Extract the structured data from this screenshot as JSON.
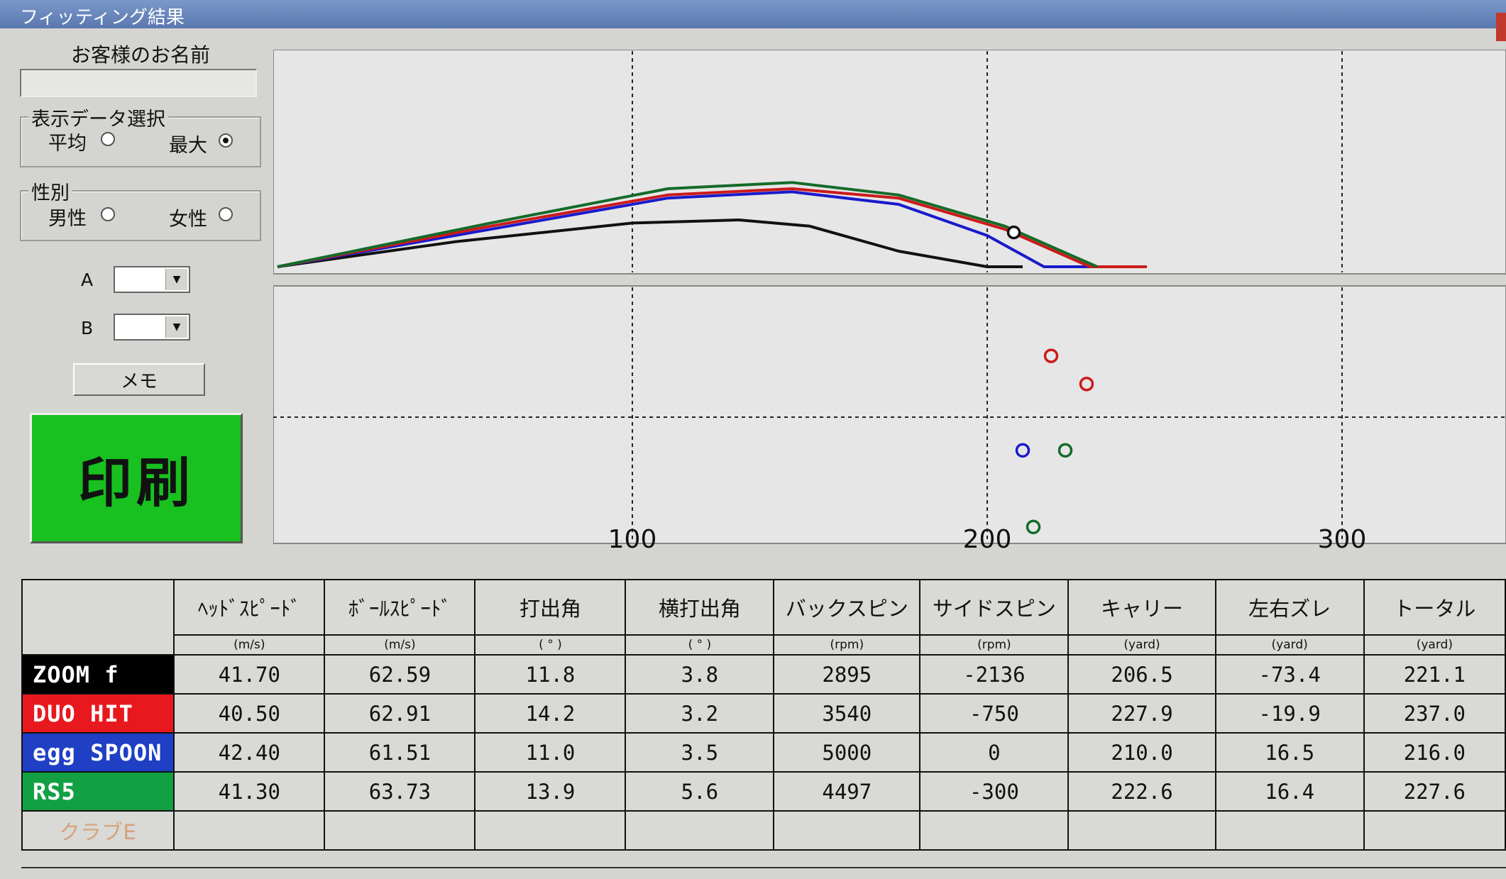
{
  "window": {
    "title": "フィッティング結果"
  },
  "sidebar": {
    "customer_label": "お客様のお名前",
    "customer_name": "",
    "display_group": {
      "legend": "表示データ選択",
      "options": [
        {
          "label": "平均",
          "selected": false
        },
        {
          "label": "最大",
          "selected": true
        }
      ]
    },
    "gender_group": {
      "legend": "性別",
      "options": [
        {
          "label": "男性",
          "selected": false
        },
        {
          "label": "女性",
          "selected": false
        }
      ]
    },
    "combo_a": {
      "label": "A",
      "value": ""
    },
    "combo_b": {
      "label": "B",
      "value": ""
    },
    "memo_label": "メモ",
    "print_label": "印刷"
  },
  "chart_data": {
    "type": "line",
    "x_ticks": [
      "100",
      "200",
      "300"
    ],
    "xlim": [
      0,
      340
    ],
    "trajectory_series": [
      {
        "color": "#111111",
        "points": [
          [
            0,
            0
          ],
          [
            50,
            8
          ],
          [
            100,
            14
          ],
          [
            130,
            15
          ],
          [
            150,
            13
          ],
          [
            175,
            5
          ],
          [
            200,
            0
          ],
          [
            210,
            0
          ]
        ]
      },
      {
        "color": "#1a1acc",
        "points": [
          [
            0,
            0
          ],
          [
            60,
            12
          ],
          [
            110,
            22
          ],
          [
            145,
            24
          ],
          [
            175,
            20
          ],
          [
            200,
            10
          ],
          [
            216,
            0
          ],
          [
            230,
            0
          ]
        ]
      },
      {
        "color": "#cc1a1a",
        "points": [
          [
            0,
            0
          ],
          [
            60,
            13
          ],
          [
            110,
            23
          ],
          [
            145,
            25
          ],
          [
            175,
            22
          ],
          [
            205,
            12
          ],
          [
            229,
            0
          ],
          [
            245,
            0
          ]
        ]
      },
      {
        "color": "#146b2a",
        "points": [
          [
            0,
            0
          ],
          [
            60,
            14
          ],
          [
            110,
            25
          ],
          [
            145,
            27
          ],
          [
            175,
            23
          ],
          [
            205,
            13
          ],
          [
            231,
            0
          ]
        ]
      }
    ],
    "trajectory_marker": {
      "x": 207.5,
      "y": 11,
      "color": "#111111"
    },
    "dispersion_points": [
      {
        "x": 218,
        "y": 24,
        "color": "#cc1a1a"
      },
      {
        "x": 228,
        "y": 13,
        "color": "#cc1a1a"
      },
      {
        "x": 210,
        "y": -13,
        "color": "#1a1acc"
      },
      {
        "x": 222,
        "y": -13,
        "color": "#146b2a"
      },
      {
        "x": 213,
        "y": -43,
        "color": "#146b2a"
      }
    ],
    "grid": true
  },
  "table": {
    "headers": [
      "ﾍｯﾄﾞｽﾋﾟｰﾄﾞ",
      "ﾎﾞｰﾙｽﾋﾟｰﾄﾞ",
      "打出角",
      "横打出角",
      "バックスピン",
      "サイドスピン",
      "キャリー",
      "左右ズレ",
      "トータル"
    ],
    "units": [
      "(m/s)",
      "(m/s)",
      "( ° )",
      "( ° )",
      "(rpm)",
      "(rpm)",
      "(yard)",
      "(yard)",
      "(yard)"
    ],
    "rows": [
      {
        "club": "ZOOM  f",
        "bg": "#000000",
        "fg": "#ffffff",
        "values": [
          "41.70",
          "62.59",
          "11.8",
          "3.8",
          "2895",
          "-2136",
          "206.5",
          "-73.4",
          "221.1"
        ]
      },
      {
        "club": "DUO  HIT",
        "bg": "#e8191e",
        "fg": "#ffffff",
        "values": [
          "40.50",
          "62.91",
          "14.2",
          "3.2",
          "3540",
          "-750",
          "227.9",
          "-19.9",
          "237.0"
        ]
      },
      {
        "club": "egg  SPOON",
        "bg": "#1f3fc4",
        "fg": "#ffffff",
        "values": [
          "42.40",
          "61.51",
          "11.0",
          "3.5",
          "5000",
          "0",
          "210.0",
          "16.5",
          "216.0"
        ]
      },
      {
        "club": "RS5",
        "bg": "#13a044",
        "fg": "#ffffff",
        "values": [
          "41.30",
          "63.73",
          "13.9",
          "5.6",
          "4497",
          "-300",
          "222.6",
          "16.4",
          "227.6"
        ]
      },
      {
        "club": "クラブE",
        "bg": "#d9d9d6",
        "fg": "#d4a27a",
        "values": [
          "",
          "",
          "",
          "",
          "",
          "",
          "",
          "",
          ""
        ]
      }
    ]
  }
}
